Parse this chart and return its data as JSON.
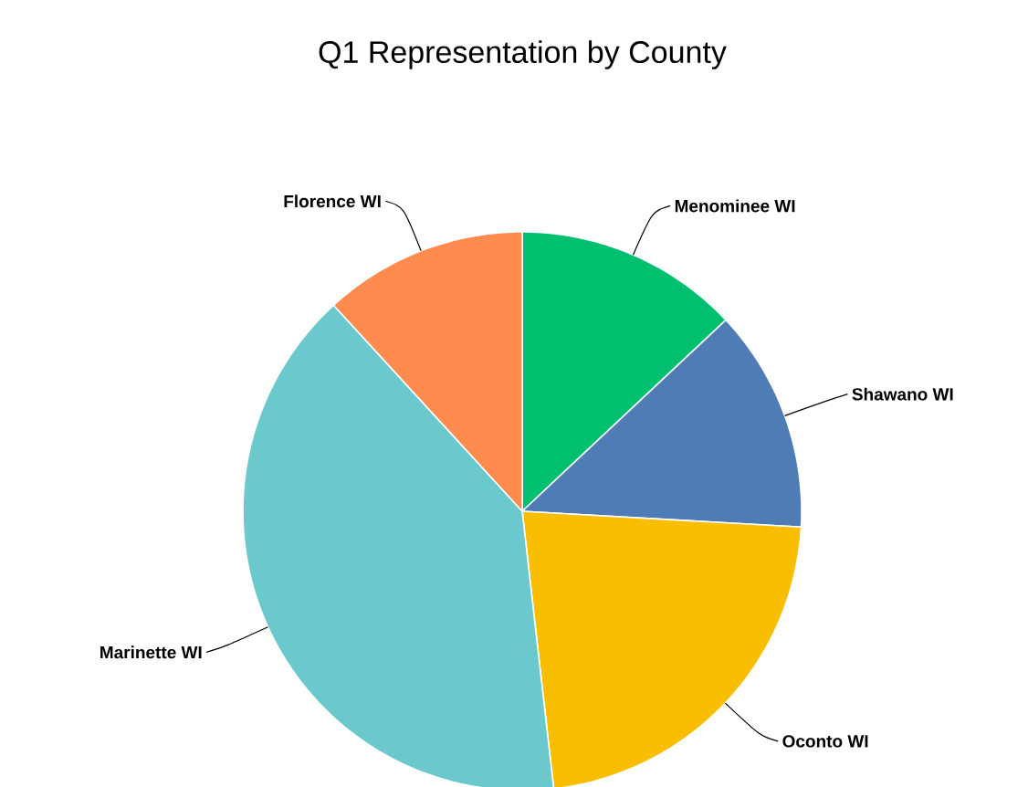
{
  "chart_data": {
    "type": "pie",
    "title": "Q1 Representation by County",
    "categories": [
      "Menominee WI",
      "Shawano WI",
      "Oconto WI",
      "Marinette WI",
      "Florence WI"
    ],
    "values": [
      13,
      12.9,
      22.3,
      40,
      11.8
    ],
    "colors": [
      "#00bf6f",
      "#507cb6",
      "#f9be00",
      "#6bc8cd",
      "#ff8b4f"
    ]
  }
}
